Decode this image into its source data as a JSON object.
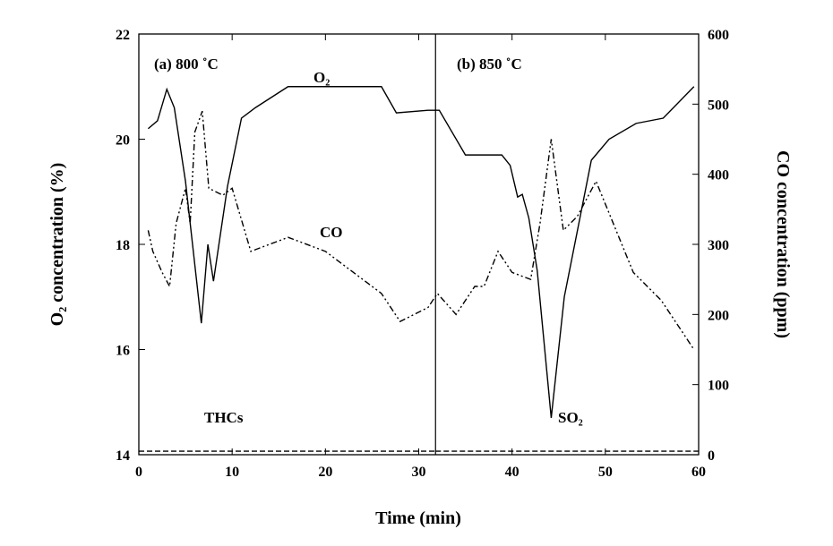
{
  "chart_data": {
    "type": "line",
    "xlabel": "Time (min)",
    "ylabel": "O₂ concentration (%)",
    "y2label": "CO concentration (ppm)",
    "xlim": [
      0,
      60
    ],
    "xticks": [
      0,
      10,
      20,
      30,
      40,
      50,
      60
    ],
    "ylim": [
      14,
      22
    ],
    "yticks": [
      14,
      16,
      18,
      20,
      22
    ],
    "y2lim": [
      0,
      600
    ],
    "y2ticks": [
      0,
      100,
      200,
      300,
      400,
      500,
      600
    ],
    "divider_x": 31.8,
    "annotations": [
      "(a) 800 ˚C",
      "(b) 850 ˚C"
    ],
    "series": [
      {
        "name": "O₂",
        "color": "#000000",
        "line_style": "solid",
        "axis": "y",
        "x": [
          1,
          2,
          3,
          3.8,
          5,
          6.7,
          7.4,
          8,
          9.5,
          11,
          12.5,
          16,
          26,
          27.6,
          31,
          32.2,
          35,
          38.9,
          39.8,
          40.6,
          41.1,
          41.8,
          42.7,
          44.2,
          45.6,
          48.5,
          50.4,
          53.3,
          56.2,
          59.5
        ],
        "values": [
          20.2,
          20.35,
          20.95,
          20.6,
          19.2,
          16.5,
          18,
          17.3,
          19.1,
          20.4,
          20.6,
          21,
          21,
          20.5,
          20.55,
          20.55,
          19.7,
          19.7,
          19.5,
          18.9,
          18.95,
          18.5,
          17.5,
          14.7,
          17,
          19.6,
          20,
          20.3,
          20.4,
          21
        ]
      },
      {
        "name": "CO",
        "color": "#000000",
        "line_style": "dashdotdot",
        "axis": "y2",
        "x": [
          1,
          1.5,
          2.5,
          3.3,
          4,
          5,
          5.5,
          6,
          6.8,
          7.5,
          9,
          10,
          12,
          16,
          20,
          26,
          28,
          31,
          32,
          34,
          36,
          37,
          38.5,
          40,
          42,
          43,
          44.2,
          45.5,
          47,
          49,
          53,
          56,
          59.5
        ],
        "values": [
          320,
          290,
          260,
          240,
          330,
          380,
          330,
          460,
          490,
          380,
          370,
          380,
          290,
          310,
          290,
          230,
          190,
          210,
          230,
          200,
          240,
          240,
          290,
          260,
          250,
          330,
          450,
          320,
          340,
          390,
          260,
          220,
          150
        ]
      },
      {
        "name": "THCs",
        "color": "#000000",
        "line_style": "dashed",
        "axis": "y2",
        "x": [
          0,
          31.8
        ],
        "values": [
          5,
          5
        ]
      },
      {
        "name": "SO₂",
        "color": "#000000",
        "line_style": "dashed",
        "axis": "y2",
        "x": [
          31.8,
          60
        ],
        "values": [
          5,
          5
        ]
      }
    ]
  }
}
